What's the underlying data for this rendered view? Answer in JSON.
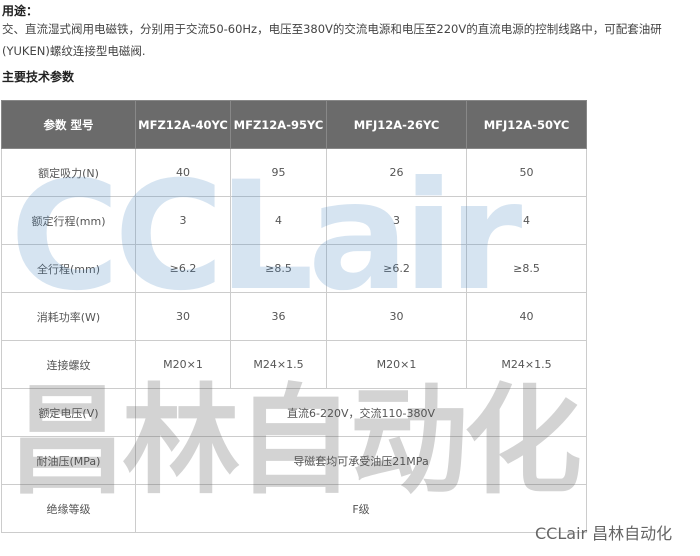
{
  "usage": {
    "heading": "用途：",
    "text": "交、直流湿式阀用电磁铁，分别用于交流50-60Hz，电压至380V的交流电源和电压至220V的直流电源的控制线路中，可配套油研(YUKEN)螺纹连接型电磁阀."
  },
  "params_heading": "主要技术参数",
  "table": {
    "headers": [
      "参数 型号",
      "MFZ12A-40YC",
      "MFZ12A-95YC",
      "MFJ12A-26YC",
      "MFJ12A-50YC"
    ],
    "rows": [
      [
        "额定吸力(N)",
        "40",
        "95",
        "26",
        "50"
      ],
      [
        "额定行程(mm)",
        "3",
        "4",
        "3",
        "4"
      ],
      [
        "全行程(mm)",
        "≥6.2",
        "≥8.5",
        "≥6.2",
        "≥8.5"
      ],
      [
        "消耗功率(W)",
        "30",
        "36",
        "30",
        "40"
      ],
      [
        "连接螺纹",
        "M20×1",
        "M24×1.5",
        "M20×1",
        "M24×1.5"
      ]
    ],
    "merged_rows": [
      [
        "额定电压(V)",
        "直流6-220V，交流110-380V"
      ],
      [
        "耐油压(MPa)",
        "导磁套均可承受油压21MPa"
      ],
      [
        "绝缘等级",
        "F级"
      ]
    ]
  },
  "watermark": {
    "latin": "CCLair",
    "chinese": "昌林自动化"
  },
  "brand": "CCLair 昌林自动化"
}
